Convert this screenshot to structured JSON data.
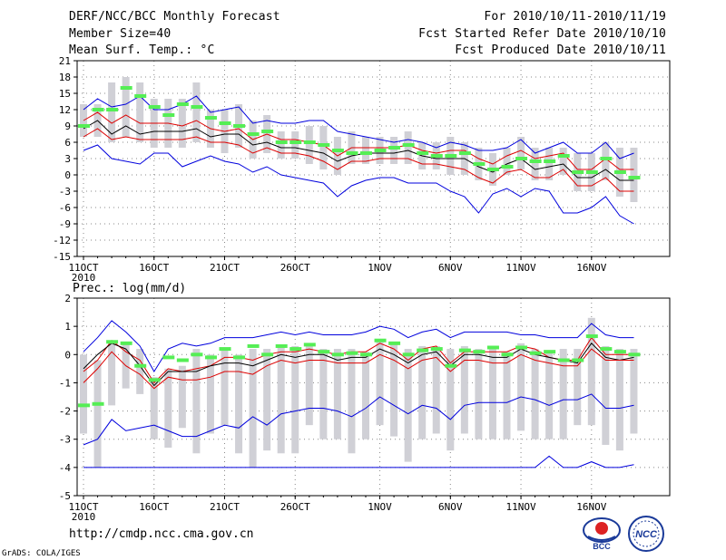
{
  "header": {
    "left": [
      "DERF/NCC/BCC Monthly Forecast",
      "Member Size=40",
      "Mean Surf. Temp.: °C"
    ],
    "right": [
      "For 2010/10/11-2010/11/19",
      "Fcst Started Refer Date 2010/10/10",
      "Fcst Produced Date 2010/10/11"
    ]
  },
  "footer": {
    "url": "http://cmdp.ncc.cma.gov.cn",
    "grads": "GrADS: COLA/IGES"
  },
  "logos": {
    "bcc": "BCC",
    "ncc": "NCC"
  },
  "colors": {
    "max": "#0000dd",
    "min": "#0000dd",
    "p75": "#dd0000",
    "p25": "#dd0000",
    "mean": "#000000",
    "box": "#d0d0d6",
    "obs": "#55ee55",
    "grid": "#888888"
  },
  "chart_data": [
    {
      "type": "line",
      "title": "Mean Surf. Temp.: °C",
      "ylim": [
        -15,
        21
      ],
      "yticks": [
        21,
        18,
        15,
        12,
        9,
        6,
        3,
        0,
        -3,
        -6,
        -9,
        -12,
        -15
      ],
      "ytick_labels": [
        "21",
        "18",
        "15",
        "12",
        "9",
        "6",
        "3",
        "0",
        "-3",
        "-6",
        "-9",
        "-12",
        "-15"
      ],
      "xticks": [
        0,
        5,
        10,
        15,
        21,
        26,
        31,
        36
      ],
      "xtick_labels": [
        "11OCT",
        "16OCT",
        "21OCT",
        "26OCT",
        "1NOV",
        "6NOV",
        "11NOV",
        "16NOV"
      ],
      "year_label": "2010",
      "days": [
        "10/11",
        "10/12",
        "10/13",
        "10/14",
        "10/15",
        "10/16",
        "10/17",
        "10/18",
        "10/19",
        "10/20",
        "10/21",
        "10/22",
        "10/23",
        "10/24",
        "10/25",
        "10/26",
        "10/27",
        "10/28",
        "10/29",
        "10/30",
        "10/31",
        "11/01",
        "11/02",
        "11/03",
        "11/04",
        "11/05",
        "11/06",
        "11/07",
        "11/08",
        "11/09",
        "11/10",
        "11/11",
        "11/12",
        "11/13",
        "11/14",
        "11/15",
        "11/16",
        "11/17",
        "11/18",
        "11/19"
      ],
      "series": [
        {
          "name": "max",
          "values": [
            12,
            14,
            12.5,
            13,
            14.5,
            12,
            12,
            13,
            14.5,
            11.5,
            12,
            12.5,
            9.5,
            10,
            9.5,
            9.5,
            10,
            10,
            8,
            7.5,
            7,
            6.5,
            6,
            6.5,
            6,
            5,
            6,
            5.5,
            4.5,
            4.5,
            5,
            6.5,
            4,
            5,
            6,
            4,
            4,
            6,
            3,
            4
          ]
        },
        {
          "name": "p75",
          "values": [
            10,
            11.5,
            9.5,
            11,
            9.5,
            9.5,
            9.5,
            9,
            10,
            8.5,
            8,
            8.5,
            6.5,
            7.5,
            6.5,
            6.5,
            6,
            5.5,
            3.5,
            5,
            5,
            5,
            5,
            5.5,
            4.5,
            4,
            4.5,
            4.5,
            3,
            2,
            3.5,
            4.5,
            3,
            3.5,
            4,
            1,
            1,
            3,
            1,
            1
          ]
        },
        {
          "name": "mean",
          "values": [
            8.5,
            10,
            7.5,
            9,
            7.5,
            8,
            8,
            8,
            8.5,
            7,
            7.5,
            7.5,
            5.5,
            6,
            5,
            5,
            4.5,
            4,
            2.5,
            3.5,
            4,
            4,
            4,
            4.5,
            3.5,
            3,
            3,
            3,
            1.5,
            0.5,
            2,
            3,
            1,
            1.5,
            2,
            -0.5,
            -0.5,
            1,
            -1,
            -1
          ]
        },
        {
          "name": "p25",
          "values": [
            7,
            8.5,
            6.5,
            7,
            6.5,
            6.5,
            6.5,
            6.5,
            7,
            6,
            6,
            5.5,
            4,
            5,
            4,
            4,
            3.5,
            2.5,
            1,
            2.5,
            2.5,
            3,
            3,
            3,
            2,
            2,
            1.5,
            1,
            -0.5,
            -1.5,
            0.5,
            1,
            -0.5,
            -0.5,
            1,
            -2,
            -2,
            -0.5,
            -3,
            -3
          ]
        },
        {
          "name": "min",
          "values": [
            4.5,
            5.5,
            3,
            2.5,
            2,
            4,
            4,
            1.5,
            2.5,
            3.5,
            2.5,
            2,
            0.5,
            1.5,
            0,
            -0.5,
            -1,
            -1.5,
            -4,
            -2,
            -1,
            -0.5,
            -0.5,
            -1.5,
            -1.5,
            -1.5,
            -3,
            -4,
            -7,
            -3.5,
            -2.5,
            -4,
            -2.5,
            -3,
            -7,
            -7,
            -6,
            -4,
            -7.5,
            -9
          ]
        }
      ],
      "obs": [
        9,
        12,
        12,
        16,
        14.5,
        12.5,
        11,
        13,
        12.5,
        10.5,
        9.5,
        9,
        7.5,
        8,
        6,
        6,
        6,
        5.5,
        4.5,
        4,
        4,
        4.5,
        5,
        5.5,
        4,
        3.5,
        3.5,
        4,
        2,
        1,
        1.5,
        3,
        2.5,
        2.5,
        3.5,
        0.5,
        0.5,
        3,
        0.5,
        -0.5
      ],
      "box_low": [
        7,
        7,
        6,
        7,
        6,
        5,
        5,
        5,
        6,
        5,
        4,
        5,
        3,
        4,
        3,
        3,
        2,
        1,
        0,
        2,
        2,
        2,
        2,
        2,
        1,
        1,
        0,
        0,
        -1,
        -2,
        0,
        1,
        -1,
        -1,
        0,
        -3,
        -3,
        -1,
        -4,
        -5
      ],
      "box_high": [
        13,
        13,
        17,
        18,
        17,
        14,
        14,
        14,
        17,
        12,
        12,
        13,
        10,
        11,
        8,
        8,
        9,
        9,
        7,
        8,
        7,
        7,
        7,
        8,
        6,
        6,
        7,
        6,
        5,
        4,
        5,
        7,
        5,
        5,
        5,
        4,
        4,
        6,
        5,
        5
      ]
    },
    {
      "type": "line",
      "title": "Prec.: log(mm/d)",
      "ylim": [
        -5,
        2
      ],
      "yticks": [
        2,
        1,
        0,
        -1,
        -2,
        -3,
        -4,
        -5
      ],
      "ytick_labels": [
        "2",
        "1",
        "0",
        "-1",
        "-2",
        "-3",
        "-4",
        "-5"
      ],
      "xticks": [
        0,
        5,
        10,
        15,
        21,
        26,
        31,
        36
      ],
      "xtick_labels": [
        "11OCT",
        "16OCT",
        "21OCT",
        "26OCT",
        "1NOV",
        "6NOV",
        "11NOV",
        "16NOV"
      ],
      "year_label": "2010",
      "series": [
        {
          "name": "max",
          "values": [
            0.1,
            0.6,
            1.2,
            0.8,
            0.3,
            -0.6,
            0.2,
            0.4,
            0.3,
            0.4,
            0.6,
            0.6,
            0.6,
            0.7,
            0.8,
            0.7,
            0.8,
            0.7,
            0.7,
            0.7,
            0.8,
            1.0,
            0.9,
            0.6,
            0.8,
            0.9,
            0.6,
            0.8,
            0.8,
            0.8,
            0.8,
            0.7,
            0.7,
            0.6,
            0.6,
            0.6,
            1.1,
            0.7,
            0.6,
            0.6
          ]
        },
        {
          "name": "p75",
          "values": [
            -0.6,
            -0.2,
            0.5,
            0.1,
            -0.2,
            -1.0,
            -0.5,
            -0.6,
            -0.5,
            -0.4,
            -0.1,
            -0.1,
            -0.2,
            0.0,
            0.1,
            0.1,
            0.2,
            0.1,
            0.0,
            0.1,
            0.1,
            0.4,
            0.2,
            -0.2,
            0.2,
            0.3,
            -0.3,
            0.1,
            0.1,
            0.1,
            0.1,
            0.3,
            0.2,
            -0.1,
            -0.2,
            -0.2,
            0.6,
            0.0,
            0.0,
            0.0
          ]
        },
        {
          "name": "mean",
          "values": [
            -0.5,
            0.0,
            0.4,
            0.2,
            -0.4,
            -1.1,
            -0.6,
            -0.6,
            -0.6,
            -0.4,
            -0.3,
            -0.3,
            -0.4,
            -0.2,
            0.0,
            -0.1,
            0.0,
            0.0,
            -0.2,
            -0.1,
            -0.1,
            0.2,
            0.0,
            -0.3,
            0.0,
            0.1,
            -0.4,
            0.0,
            0.0,
            -0.1,
            -0.1,
            0.2,
            0.0,
            -0.1,
            -0.2,
            -0.3,
            0.4,
            -0.1,
            -0.2,
            -0.1
          ]
        },
        {
          "name": "p25",
          "values": [
            -1.0,
            -0.5,
            0.1,
            -0.4,
            -0.7,
            -1.2,
            -0.8,
            -0.9,
            -0.9,
            -0.8,
            -0.6,
            -0.6,
            -0.7,
            -0.4,
            -0.2,
            -0.3,
            -0.2,
            -0.2,
            -0.3,
            -0.3,
            -0.3,
            0.0,
            -0.2,
            -0.5,
            -0.2,
            -0.1,
            -0.6,
            -0.2,
            -0.2,
            -0.3,
            -0.3,
            0.0,
            -0.2,
            -0.3,
            -0.4,
            -0.4,
            0.2,
            -0.2,
            -0.2,
            -0.2
          ]
        },
        {
          "name": "min",
          "values": [
            -3.2,
            -3.0,
            -2.3,
            -2.7,
            -2.6,
            -2.5,
            -2.7,
            -2.9,
            -2.9,
            -2.7,
            -2.5,
            -2.6,
            -2.2,
            -2.5,
            -2.1,
            -2.0,
            -1.9,
            -1.9,
            -2.0,
            -2.2,
            -1.9,
            -1.5,
            -1.8,
            -2.1,
            -1.8,
            -1.9,
            -2.3,
            -1.8,
            -1.7,
            -1.7,
            -1.7,
            -1.5,
            -1.6,
            -1.8,
            -1.6,
            -1.6,
            -1.4,
            -1.9,
            -1.9,
            -1.8
          ]
        },
        {
          "name": "floor",
          "values": [
            -4,
            -4,
            -4,
            -4,
            -4,
            -4,
            -4,
            -4,
            -4,
            -4,
            -4,
            -4,
            -4,
            -4,
            -4,
            -4,
            -4,
            -4,
            -4,
            -4,
            -4,
            -4,
            -4,
            -4,
            -4,
            -4,
            -4,
            -4,
            -4,
            -4,
            -4,
            -4,
            -4,
            -3.6,
            -4,
            -4,
            -3.8,
            -4,
            -4,
            -3.9
          ]
        }
      ],
      "obs": [
        -1.8,
        -1.75,
        0.45,
        0.4,
        -0.4,
        -0.9,
        -0.1,
        -0.2,
        0.0,
        -0.1,
        0.2,
        -0.1,
        0.3,
        0.0,
        0.3,
        0.2,
        0.35,
        0.1,
        0.0,
        0.05,
        0.0,
        0.5,
        0.4,
        0.0,
        0.15,
        0.2,
        -0.4,
        0.15,
        0.1,
        0.25,
        0.0,
        0.25,
        0.05,
        0.1,
        -0.2,
        -0.2,
        0.65,
        0.2,
        0.1,
        0.0
      ],
      "box_low": [
        -2.8,
        -4.0,
        -1.8,
        -1.2,
        -1.4,
        -3.0,
        -3.3,
        -2.6,
        -3.5,
        -2.8,
        -2.5,
        -3.5,
        -4.0,
        -3.4,
        -3.5,
        -3.5,
        -2.5,
        -3.0,
        -3.0,
        -3.5,
        -3.0,
        -2.5,
        -2.9,
        -3.8,
        -3.0,
        -2.8,
        -3.4,
        -2.8,
        -3.0,
        -3.0,
        -3.0,
        -2.7,
        -3.0,
        -3.0,
        -3.0,
        -2.5,
        -2.5,
        -3.2,
        -3.4,
        -2.8
      ],
      "box_high": [
        0.0,
        -0.2,
        0.5,
        0.4,
        0.2,
        -0.8,
        -0.5,
        -0.4,
        0.2,
        0.0,
        0.2,
        0.0,
        0.2,
        0.2,
        0.3,
        0.3,
        0.3,
        0.2,
        0.2,
        0.2,
        0.1,
        0.5,
        0.4,
        0.2,
        0.3,
        0.3,
        0.2,
        0.3,
        0.2,
        0.3,
        0.1,
        0.4,
        0.2,
        0.1,
        0.2,
        0.2,
        1.3,
        0.3,
        0.2,
        0.2
      ]
    }
  ]
}
